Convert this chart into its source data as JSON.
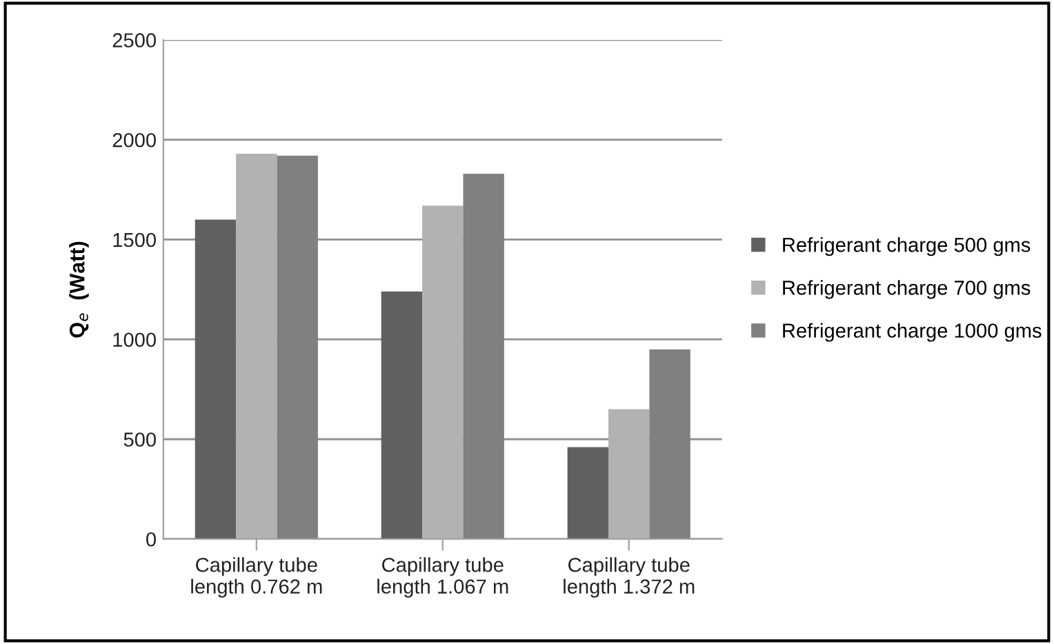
{
  "chart_data": {
    "type": "bar",
    "ylabel": "Q$_{e}$  (Watt)",
    "categories": [
      "Capillary tube\nlength 0.762 m",
      "Capillary tube\nlength 1.067 m",
      "Capillary tube\nlength 1.372 m"
    ],
    "series": [
      {
        "name": "Refrigerant charge 500 gms",
        "color": "#606060",
        "values": [
          1600,
          1240,
          460
        ]
      },
      {
        "name": "Refrigerant charge 700 gms",
        "color": "#b2b2b2",
        "values": [
          1930,
          1670,
          650
        ]
      },
      {
        "name": "Refrigerant charge 1000 gms",
        "color": "#808080",
        "values": [
          1920,
          1830,
          950
        ]
      }
    ],
    "ylim": [
      0,
      2500
    ],
    "yticks": [
      0,
      500,
      1000,
      1500,
      2000,
      2500
    ],
    "grid": "y",
    "legend": "right"
  }
}
